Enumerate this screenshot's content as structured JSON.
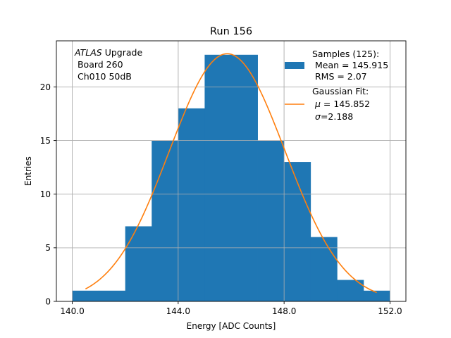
{
  "chart_data": {
    "type": "bar",
    "title": "Run 156",
    "xlabel": "Energy [ADC Counts]",
    "ylabel": "Entries",
    "xlim": [
      139.4,
      152.6
    ],
    "ylim": [
      0,
      24.3
    ],
    "grid": true,
    "x_ticks": [
      140.0,
      144.0,
      148.0,
      152.0
    ],
    "x_tick_labels": [
      "140.0",
      "144.0",
      "148.0",
      "152.0"
    ],
    "y_ticks": [
      0,
      5,
      10,
      15,
      20
    ],
    "y_tick_labels": [
      "0",
      "5",
      "10",
      "15",
      "20"
    ],
    "bin_edges": [
      140,
      141,
      142,
      143,
      144,
      145,
      146,
      147,
      148,
      149,
      150,
      151,
      152
    ],
    "counts": [
      1,
      1,
      7,
      15,
      18,
      23,
      23,
      15,
      13,
      6,
      2,
      1
    ],
    "bar_color": "#1f77b4",
    "fit": {
      "type": "gaussian",
      "mu": 145.852,
      "sigma": 2.188,
      "amplitude": 23.1,
      "x_range": [
        140.5,
        151.5
      ],
      "color": "#ff7f0e"
    },
    "annotation": {
      "italic_part": "ATLAS",
      "line1_rest": " Upgrade",
      "line2": " Board 260",
      "line3": " Ch010 50dB"
    },
    "legend": {
      "position": "top-right",
      "samples": {
        "line1": "Samples (125):",
        "line2": " Mean = 145.915",
        "line3": " RMS = 2.07"
      },
      "fit": {
        "line1": "Gaussian Fit:",
        "line2_symbol": "μ",
        "line2_rest": " = 145.852",
        "line3_symbol": "σ",
        "line3_rest": "=2.188"
      }
    }
  }
}
